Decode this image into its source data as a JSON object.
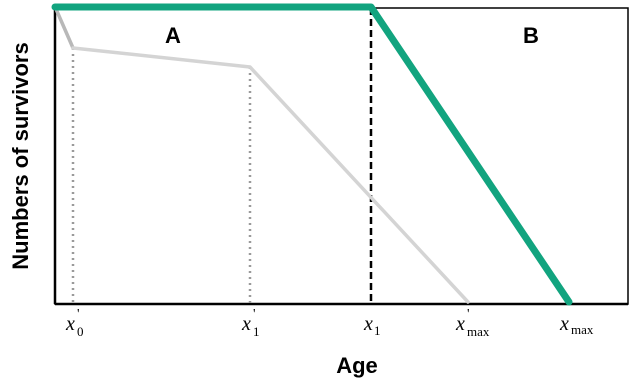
{
  "colors": {
    "curve_b": "#12a47f",
    "curve_a": "#d4d4d4",
    "curve_a_early": "#b8b8b8",
    "dotted": "#9a9a9a",
    "frame": "#000000"
  },
  "diagram": {
    "ylabel": "Numbers of survivors",
    "xlabel": "Age",
    "region_a": "A",
    "region_b": "B",
    "ticks": [
      {
        "var": "x",
        "prime": "'",
        "sub": "0"
      },
      {
        "var": "x",
        "prime": "'",
        "sub": "1"
      },
      {
        "var": "x",
        "prime": "",
        "sub": "1"
      },
      {
        "var": "x",
        "prime": "'",
        "sub": "max"
      },
      {
        "var": "x",
        "prime": "",
        "sub": "max"
      }
    ]
  }
}
